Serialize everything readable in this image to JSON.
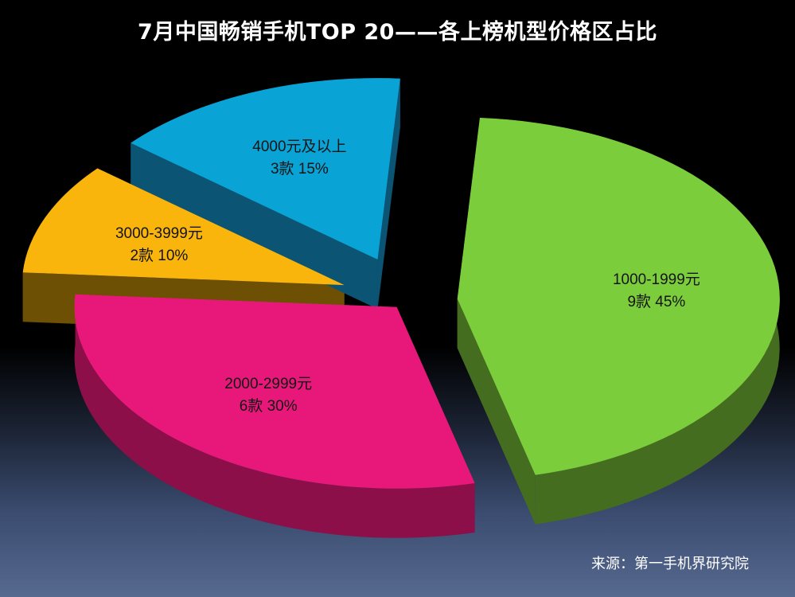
{
  "chart_data": {
    "type": "pie",
    "title": "7月中国畅销手机TOP 20——各上榜机型价格区占比",
    "source": "来源：第一手机界研究院",
    "slices": [
      {
        "category": "1000-1999元",
        "count": 9,
        "count_label": "9款",
        "percent": 45,
        "percent_label": "45%",
        "color": "#7ccd3c",
        "side_color": "#456d20"
      },
      {
        "category": "2000-2999元",
        "count": 6,
        "count_label": "6款",
        "percent": 30,
        "percent_label": "30%",
        "color": "#e8187a",
        "side_color": "#8c0f4a"
      },
      {
        "category": "3000-3999元",
        "count": 2,
        "count_label": "2款",
        "percent": 10,
        "percent_label": "10%",
        "color": "#f9b50c",
        "side_color": "#6e5004"
      },
      {
        "category": "4000元及以上",
        "count": 3,
        "count_label": "3款",
        "percent": 15,
        "percent_label": "15%",
        "color": "#0aa3d6",
        "side_color": "#0b5473"
      }
    ]
  }
}
